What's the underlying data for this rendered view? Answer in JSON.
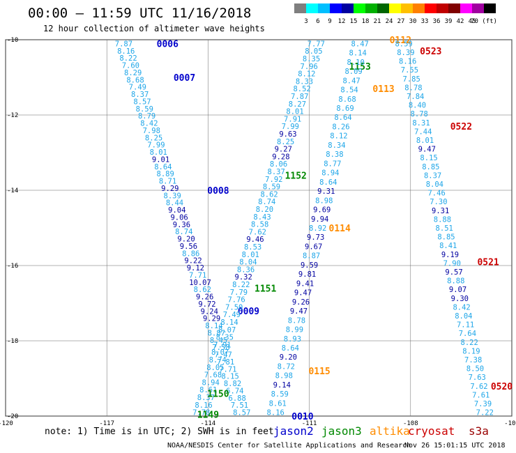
{
  "header": {
    "title": "00:00 – 11:59 UTC 11/16/2018",
    "subtitle": "12 hour collection of altimeter wave heights"
  },
  "color_scale": {
    "colors": [
      "#7f7f7f",
      "#00ffff",
      "#00bfff",
      "#0000ff",
      "#0000a0",
      "#00ff00",
      "#00b000",
      "#006600",
      "#ffff00",
      "#ffc000",
      "#ff8000",
      "#ff0000",
      "#c00000",
      "#800000",
      "#ff00ff",
      "#a000a0",
      "#000000"
    ],
    "labels": [
      "3",
      "6",
      "9",
      "12",
      "15",
      "18",
      "21",
      "24",
      "27",
      "30",
      "33",
      "36",
      "39",
      "42",
      "45",
      "70 (ft)"
    ]
  },
  "axes": {
    "lon_ticks": [
      "-120",
      "-117",
      "-114",
      "-111",
      "-108",
      "-105"
    ],
    "lat_ticks": [
      "-10",
      "-12",
      "-14",
      "-16",
      "-18",
      "-20"
    ]
  },
  "satellites": [
    {
      "name": "jason2",
      "color": "#0000cc"
    },
    {
      "name": "jason3",
      "color": "#008800"
    },
    {
      "name": "altika",
      "color": "#ff8c00"
    },
    {
      "name": "cryosat",
      "color": "#cc0000"
    },
    {
      "name": "s3a",
      "color": "#990000"
    }
  ],
  "tracks": [
    {
      "id": "A",
      "sat": "jason2",
      "start": [
        -116.5,
        -10.1
      ],
      "end": [
        -113.0,
        -19.9
      ],
      "values": [
        "7.87",
        "8.16",
        "8.22",
        "7.60",
        "8.29",
        "8.68",
        "7.49",
        "8.37",
        "8.57",
        "8.59",
        "8.79",
        "8.42",
        "7.98",
        "8.25",
        "7.99",
        "8.01",
        "9.01",
        "8.64",
        "8.89",
        "8.71",
        "9.29",
        "8.39",
        "8.44",
        "9.04",
        "9.06",
        "9.36",
        "8.74",
        "9.20",
        "9.56",
        "8.86",
        "9.22",
        "9.12",
        "7.71",
        "10.07",
        "8.62",
        "9.26",
        "9.72",
        "9.24",
        "9.29",
        "8.14",
        "8.87",
        "8.45",
        "7.58",
        "7.47",
        "7.81",
        "7.71",
        "8.15",
        "8.82",
        "6.74",
        "6.88",
        "7.51",
        "8.57"
      ],
      "times": [
        {
          "t": "0006",
          "lon": -115.2,
          "lat": -10.1
        },
        {
          "t": "0007",
          "lon": -114.7,
          "lat": -11.0
        },
        {
          "t": "0008",
          "lon": -113.7,
          "lat": -14.0
        },
        {
          "t": "0009",
          "lon": -112.8,
          "lat": -17.2
        },
        {
          "t": "0010",
          "lon": -111.2,
          "lat": -20.0
        }
      ]
    },
    {
      "id": "B",
      "sat": "jason3",
      "start": [
        -110.8,
        -10.1
      ],
      "end": [
        -114.2,
        -19.9
      ],
      "values": [
        "7.77",
        "8.05",
        "8.35",
        "7.96",
        "8.12",
        "8.33",
        "8.52",
        "7.87",
        "8.27",
        "8.01",
        "7.91",
        "7.99",
        "9.63",
        "8.25",
        "9.27",
        "9.28",
        "8.06",
        "8.37",
        "7.92",
        "8.59",
        "8.62",
        "8.74",
        "8.20",
        "8.43",
        "8.58",
        "7.62",
        "9.46",
        "8.53",
        "8.01",
        "8.04",
        "8.36",
        "9.32",
        "8.22",
        "7.79",
        "7.76",
        "7.50",
        "7.49",
        "8.14",
        "8.07",
        "8.35",
        "7.91",
        "8.07",
        "8.74",
        "8.05",
        "7.68",
        "8.94",
        "8.61",
        "8.37",
        "8.16",
        "7.78"
      ],
      "times": [
        {
          "t": "1153",
          "lon": -109.5,
          "lat": -10.7
        },
        {
          "t": "1152",
          "lon": -111.4,
          "lat": -13.6
        },
        {
          "t": "1151",
          "lon": -112.3,
          "lat": -16.6
        },
        {
          "t": "1150",
          "lon": -113.7,
          "lat": -19.4
        },
        {
          "t": "1149",
          "lon": -114.0,
          "lat": -19.95
        }
      ]
    },
    {
      "id": "C",
      "sat": "altika",
      "start": [
        -109.5,
        -10.1
      ],
      "end": [
        -112.0,
        -19.9
      ],
      "values": [
        "8.47",
        "8.14",
        "8.10",
        "8.09",
        "8.47",
        "8.54",
        "8.68",
        "8.69",
        "8.64",
        "8.26",
        "8.12",
        "8.34",
        "8.38",
        "8.77",
        "8.94",
        "8.64",
        "9.31",
        "8.98",
        "9.69",
        "9.94",
        "8.92",
        "9.73",
        "9.67",
        "8.87",
        "9.59",
        "9.81",
        "9.41",
        "9.47",
        "9.26",
        "9.47",
        "8.78",
        "8.99",
        "8.93",
        "8.64",
        "9.20",
        "8.72",
        "8.98",
        "9.14",
        "8.59",
        "8.61",
        "8.16"
      ],
      "times": [
        {
          "t": "0112",
          "lon": -108.3,
          "lat": -10.0
        },
        {
          "t": "0113",
          "lon": -108.8,
          "lat": -11.3
        },
        {
          "t": "0114",
          "lon": -110.1,
          "lat": -15.0
        },
        {
          "t": "0115",
          "lon": -110.7,
          "lat": -18.8
        }
      ]
    },
    {
      "id": "D",
      "sat": "cryosat",
      "start": [
        -108.2,
        -10.1
      ],
      "end": [
        -105.8,
        -19.9
      ],
      "values": [
        "8.59",
        "8.39",
        "8.16",
        "7.55",
        "7.85",
        "8.78",
        "7.84",
        "8.40",
        "8.78",
        "8.31",
        "7.44",
        "8.01",
        "9.47",
        "8.15",
        "8.85",
        "8.37",
        "8.04",
        "7.46",
        "7.30",
        "9.31",
        "8.88",
        "8.51",
        "8.85",
        "8.41",
        "9.19",
        "7.90",
        "9.57",
        "8.88",
        "9.07",
        "9.30",
        "8.42",
        "8.04",
        "7.11",
        "7.64",
        "8.22",
        "8.19",
        "7.38",
        "8.50",
        "7.63",
        "7.62",
        "7.61",
        "7.39",
        "7.22"
      ],
      "times": [
        {
          "t": "0523",
          "lon": -107.4,
          "lat": -10.3
        },
        {
          "t": "0522",
          "lon": -106.5,
          "lat": -12.3
        },
        {
          "t": "0521",
          "lon": -105.7,
          "lat": -15.9
        },
        {
          "t": "0520",
          "lon": -105.3,
          "lat": -19.2
        }
      ]
    }
  ],
  "notes": {
    "text": "note: 1) Time is in UTC; 2) SWH is in feet",
    "credit": "NOAA/NESDIS Center for Satellite Applications and Research",
    "generated": "Nov 26 15:01:15 UTC 2018"
  }
}
